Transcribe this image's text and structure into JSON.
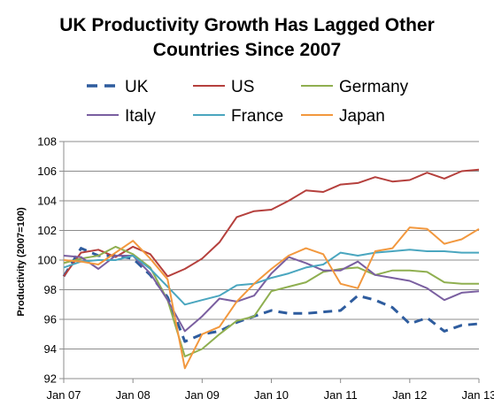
{
  "chart_data": {
    "type": "line",
    "title_lines": [
      "UK Productivity Growth Has Lagged Other",
      "Countries Since 2007"
    ],
    "ylabel": "Productivity (2007=100)",
    "xlabel": "",
    "ylim": [
      92,
      108
    ],
    "yticks": [
      92,
      94,
      96,
      98,
      100,
      102,
      104,
      106,
      108
    ],
    "xlim": [
      2007.0,
      2013.0
    ],
    "xticks": [
      {
        "value": 2007,
        "label": "Jan 07"
      },
      {
        "value": 2008,
        "label": "Jan 08"
      },
      {
        "value": 2009,
        "label": "Jan 09"
      },
      {
        "value": 2010,
        "label": "Jan 10"
      },
      {
        "value": 2011,
        "label": "Jan 11"
      },
      {
        "value": 2012,
        "label": "Jan 12"
      },
      {
        "value": 2013,
        "label": "Jan 13"
      }
    ],
    "grid": true,
    "legend_position": "top",
    "x": [
      2007.0,
      2007.25,
      2007.5,
      2007.75,
      2008.0,
      2008.25,
      2008.5,
      2008.75,
      2009.0,
      2009.25,
      2009.5,
      2009.75,
      2010.0,
      2010.25,
      2010.5,
      2010.75,
      2011.0,
      2011.25,
      2011.5,
      2011.75,
      2012.0,
      2012.25,
      2012.5,
      2012.75,
      2013.0
    ],
    "series": [
      {
        "name": "UK",
        "color": "#2e5c9e",
        "dash": true,
        "values": [
          98.9,
          100.8,
          100.3,
          100.3,
          100.1,
          99.0,
          97.5,
          94.5,
          95.0,
          95.2,
          95.8,
          96.2,
          96.6,
          96.4,
          96.4,
          96.5,
          96.6,
          97.6,
          97.3,
          96.8,
          95.7,
          96.1,
          95.2,
          95.6,
          95.7
        ]
      },
      {
        "name": "US",
        "color": "#b5403d",
        "dash": false,
        "values": [
          98.9,
          100.5,
          100.7,
          100.2,
          100.9,
          100.4,
          98.9,
          99.4,
          100.1,
          101.2,
          102.9,
          103.3,
          103.4,
          104.0,
          104.7,
          104.6,
          105.1,
          105.2,
          105.6,
          105.3,
          105.4,
          105.9,
          105.5,
          106.0,
          106.1
        ]
      },
      {
        "name": "Germany",
        "color": "#8faf50",
        "dash": false,
        "values": [
          99.8,
          100.1,
          100.3,
          100.9,
          100.4,
          99.5,
          97.3,
          93.5,
          94.0,
          95.0,
          95.9,
          96.2,
          97.9,
          98.2,
          98.5,
          99.2,
          99.4,
          99.5,
          99.0,
          99.3,
          99.3,
          99.2,
          98.5,
          98.4,
          98.4
        ]
      },
      {
        "name": "Italy",
        "color": "#7a5fa0",
        "dash": false,
        "values": [
          100.3,
          100.2,
          99.4,
          100.3,
          100.3,
          99.1,
          97.3,
          95.2,
          96.2,
          97.4,
          97.2,
          97.6,
          99.1,
          100.2,
          99.8,
          99.3,
          99.3,
          99.9,
          99.0,
          98.8,
          98.6,
          98.1,
          97.3,
          97.8,
          97.9
        ]
      },
      {
        "name": "France",
        "color": "#4aa6bf",
        "dash": false,
        "values": [
          99.5,
          99.9,
          100.0,
          100.0,
          100.3,
          99.4,
          98.2,
          97.0,
          97.3,
          97.6,
          98.3,
          98.4,
          98.8,
          99.1,
          99.5,
          99.7,
          100.5,
          100.3,
          100.5,
          100.6,
          100.7,
          100.6,
          100.6,
          100.5,
          100.5
        ]
      },
      {
        "name": "Japan",
        "color": "#f2983e",
        "dash": false,
        "values": [
          100.0,
          99.9,
          99.7,
          100.5,
          101.3,
          100.1,
          98.7,
          92.7,
          95.0,
          95.5,
          97.2,
          98.4,
          99.4,
          100.3,
          100.8,
          100.4,
          98.4,
          98.1,
          100.6,
          100.8,
          102.2,
          102.1,
          101.1,
          101.4,
          102.1
        ]
      }
    ]
  }
}
